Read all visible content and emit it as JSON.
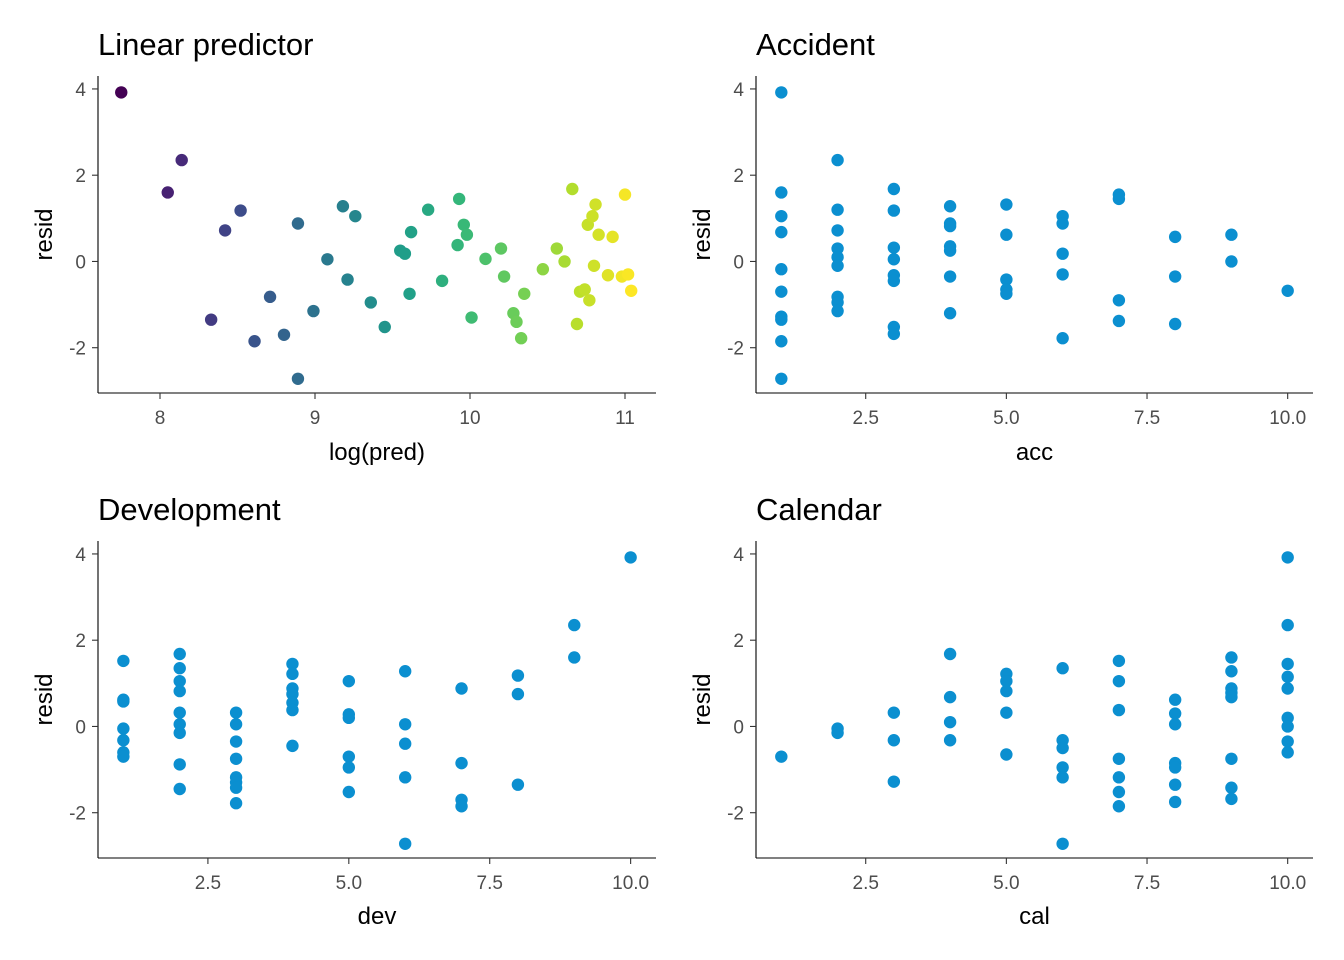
{
  "chart_data": [
    {
      "type": "scatter",
      "title": "Linear predictor",
      "xlabel": "log(pred)",
      "ylabel": "resid",
      "xlim": [
        7.6,
        11.2
      ],
      "ylim": [
        -3.05,
        4.3
      ],
      "xticks": [
        8,
        9,
        10,
        11
      ],
      "xtick_labels": [
        "8",
        "9",
        "10",
        "11"
      ],
      "yticks": [
        -2,
        0,
        2,
        4
      ],
      "ytick_labels": [
        "-2",
        "0",
        "2",
        "4"
      ],
      "color_mode": "viridis-by-x",
      "grid": false,
      "legend": "none",
      "points": [
        [
          7.75,
          3.92
        ],
        [
          8.05,
          1.6
        ],
        [
          8.14,
          2.35
        ],
        [
          8.33,
          -1.35
        ],
        [
          8.42,
          0.72
        ],
        [
          8.52,
          1.18
        ],
        [
          8.61,
          -1.85
        ],
        [
          8.71,
          -0.82
        ],
        [
          8.8,
          -1.7
        ],
        [
          8.89,
          0.88
        ],
        [
          8.89,
          -2.72
        ],
        [
          8.99,
          -1.15
        ],
        [
          9.08,
          0.05
        ],
        [
          9.18,
          1.28
        ],
        [
          9.21,
          -0.42
        ],
        [
          9.26,
          1.05
        ],
        [
          9.36,
          -0.95
        ],
        [
          9.45,
          -1.52
        ],
        [
          9.55,
          0.25
        ],
        [
          9.58,
          0.18
        ],
        [
          9.62,
          0.68
        ],
        [
          9.61,
          -0.75
        ],
        [
          9.73,
          1.2
        ],
        [
          9.82,
          -0.45
        ],
        [
          9.92,
          0.38
        ],
        [
          9.93,
          1.45
        ],
        [
          9.96,
          0.85
        ],
        [
          9.98,
          0.62
        ],
        [
          10.01,
          -1.3
        ],
        [
          10.1,
          0.06
        ],
        [
          10.2,
          0.3
        ],
        [
          10.22,
          -0.35
        ],
        [
          10.28,
          -1.2
        ],
        [
          10.3,
          -1.4
        ],
        [
          10.33,
          -1.78
        ],
        [
          10.35,
          -0.75
        ],
        [
          10.47,
          -0.18
        ],
        [
          10.56,
          0.3
        ],
        [
          10.61,
          0.0
        ],
        [
          10.66,
          1.68
        ],
        [
          10.69,
          -1.45
        ],
        [
          10.71,
          -0.7
        ],
        [
          10.74,
          -0.65
        ],
        [
          10.76,
          0.85
        ],
        [
          10.77,
          -0.9
        ],
        [
          10.79,
          1.05
        ],
        [
          10.81,
          1.32
        ],
        [
          10.8,
          -0.1
        ],
        [
          10.83,
          0.62
        ],
        [
          10.89,
          -0.32
        ],
        [
          10.92,
          0.57
        ],
        [
          10.98,
          -0.35
        ],
        [
          11.0,
          1.55
        ],
        [
          11.02,
          -0.3
        ],
        [
          11.04,
          -0.68
        ]
      ]
    },
    {
      "type": "scatter",
      "title": "Accident",
      "xlabel": "acc",
      "ylabel": "resid",
      "xlim": [
        0.55,
        10.45
      ],
      "ylim": [
        -3.05,
        4.3
      ],
      "xticks": [
        2.5,
        5.0,
        7.5,
        10.0
      ],
      "xtick_labels": [
        "2.5",
        "5.0",
        "7.5",
        "10.0"
      ],
      "yticks": [
        -2,
        0,
        2,
        4
      ],
      "ytick_labels": [
        "-2",
        "0",
        "2",
        "4"
      ],
      "color": "#0b8fd0",
      "grid": false,
      "legend": "none",
      "points": [
        [
          1,
          3.92
        ],
        [
          1,
          1.6
        ],
        [
          1,
          1.05
        ],
        [
          1,
          0.68
        ],
        [
          1,
          -0.18
        ],
        [
          1,
          -0.7
        ],
        [
          1,
          -1.28
        ],
        [
          1,
          -1.35
        ],
        [
          1,
          -1.85
        ],
        [
          1,
          -2.72
        ],
        [
          2,
          2.35
        ],
        [
          2,
          1.2
        ],
        [
          2,
          0.72
        ],
        [
          2,
          0.3
        ],
        [
          2,
          0.1
        ],
        [
          2,
          -0.1
        ],
        [
          2,
          -0.82
        ],
        [
          2,
          -0.95
        ],
        [
          2,
          -1.15
        ],
        [
          3,
          1.68
        ],
        [
          3,
          1.18
        ],
        [
          3,
          0.32
        ],
        [
          3,
          0.05
        ],
        [
          3,
          -0.32
        ],
        [
          3,
          -0.45
        ],
        [
          3,
          -1.52
        ],
        [
          3,
          -1.68
        ],
        [
          4,
          1.28
        ],
        [
          4,
          0.88
        ],
        [
          4,
          0.82
        ],
        [
          4,
          0.35
        ],
        [
          4,
          0.25
        ],
        [
          4,
          -0.35
        ],
        [
          4,
          -1.2
        ],
        [
          5,
          1.32
        ],
        [
          5,
          0.62
        ],
        [
          5,
          -0.42
        ],
        [
          5,
          -0.65
        ],
        [
          5,
          -0.75
        ],
        [
          6,
          1.05
        ],
        [
          6,
          0.88
        ],
        [
          6,
          0.18
        ],
        [
          6,
          -0.3
        ],
        [
          6,
          -1.78
        ],
        [
          7,
          1.55
        ],
        [
          7,
          1.45
        ],
        [
          7,
          -0.9
        ],
        [
          7,
          -1.38
        ],
        [
          8,
          0.57
        ],
        [
          8,
          -0.35
        ],
        [
          8,
          -1.45
        ],
        [
          9,
          0.62
        ],
        [
          9,
          0.0
        ],
        [
          10,
          -0.68
        ]
      ]
    },
    {
      "type": "scatter",
      "title": "Development",
      "xlabel": "dev",
      "ylabel": "resid",
      "xlim": [
        0.55,
        10.45
      ],
      "ylim": [
        -3.05,
        4.3
      ],
      "xticks": [
        2.5,
        5.0,
        7.5,
        10.0
      ],
      "xtick_labels": [
        "2.5",
        "5.0",
        "7.5",
        "10.0"
      ],
      "yticks": [
        -2,
        0,
        2,
        4
      ],
      "ytick_labels": [
        "-2",
        "0",
        "2",
        "4"
      ],
      "color": "#0b8fd0",
      "grid": false,
      "legend": "none",
      "points": [
        [
          1,
          1.52
        ],
        [
          1,
          0.62
        ],
        [
          1,
          0.58
        ],
        [
          1,
          -0.05
        ],
        [
          1,
          -0.32
        ],
        [
          1,
          -0.6
        ],
        [
          1,
          -0.7
        ],
        [
          2,
          1.68
        ],
        [
          2,
          1.35
        ],
        [
          2,
          1.05
        ],
        [
          2,
          0.82
        ],
        [
          2,
          0.32
        ],
        [
          2,
          0.05
        ],
        [
          2,
          -0.15
        ],
        [
          2,
          -0.88
        ],
        [
          2,
          -1.45
        ],
        [
          3,
          0.32
        ],
        [
          3,
          0.05
        ],
        [
          3,
          -0.35
        ],
        [
          3,
          -0.75
        ],
        [
          3,
          -1.18
        ],
        [
          3,
          -1.3
        ],
        [
          3,
          -1.42
        ],
        [
          3,
          -1.78
        ],
        [
          4,
          1.45
        ],
        [
          4,
          1.22
        ],
        [
          4,
          0.88
        ],
        [
          4,
          0.75
        ],
        [
          4,
          0.55
        ],
        [
          4,
          0.38
        ],
        [
          4,
          -0.45
        ],
        [
          5,
          1.05
        ],
        [
          5,
          0.28
        ],
        [
          5,
          0.2
        ],
        [
          5,
          -0.7
        ],
        [
          5,
          -0.95
        ],
        [
          5,
          -1.52
        ],
        [
          6,
          1.28
        ],
        [
          6,
          0.05
        ],
        [
          6,
          -0.4
        ],
        [
          6,
          -1.18
        ],
        [
          6,
          -2.72
        ],
        [
          7,
          0.88
        ],
        [
          7,
          -0.85
        ],
        [
          7,
          -1.7
        ],
        [
          7,
          -1.85
        ],
        [
          8,
          1.18
        ],
        [
          8,
          0.75
        ],
        [
          8,
          -1.35
        ],
        [
          9,
          2.35
        ],
        [
          9,
          1.6
        ],
        [
          10,
          3.92
        ]
      ]
    },
    {
      "type": "scatter",
      "title": "Calendar",
      "xlabel": "cal",
      "ylabel": "resid",
      "xlim": [
        0.55,
        10.45
      ],
      "ylim": [
        -3.05,
        4.3
      ],
      "xticks": [
        2.5,
        5.0,
        7.5,
        10.0
      ],
      "xtick_labels": [
        "2.5",
        "5.0",
        "7.5",
        "10.0"
      ],
      "yticks": [
        -2,
        0,
        2,
        4
      ],
      "ytick_labels": [
        "-2",
        "0",
        "2",
        "4"
      ],
      "color": "#0b8fd0",
      "grid": false,
      "legend": "none",
      "points": [
        [
          1,
          -0.7
        ],
        [
          2,
          -0.05
        ],
        [
          2,
          -0.15
        ],
        [
          3,
          0.32
        ],
        [
          3,
          -0.32
        ],
        [
          3,
          -1.28
        ],
        [
          4,
          1.68
        ],
        [
          4,
          0.68
        ],
        [
          4,
          0.1
        ],
        [
          4,
          -0.32
        ],
        [
          5,
          1.22
        ],
        [
          5,
          1.05
        ],
        [
          5,
          0.82
        ],
        [
          5,
          0.32
        ],
        [
          5,
          -0.65
        ],
        [
          6,
          1.35
        ],
        [
          6,
          -0.32
        ],
        [
          6,
          -0.5
        ],
        [
          6,
          -0.95
        ],
        [
          6,
          -1.18
        ],
        [
          6,
          -2.72
        ],
        [
          7,
          1.52
        ],
        [
          7,
          1.05
        ],
        [
          7,
          0.38
        ],
        [
          7,
          -0.75
        ],
        [
          7,
          -1.18
        ],
        [
          7,
          -1.52
        ],
        [
          7,
          -1.85
        ],
        [
          8,
          0.62
        ],
        [
          8,
          0.3
        ],
        [
          8,
          0.05
        ],
        [
          8,
          -0.85
        ],
        [
          8,
          -0.95
        ],
        [
          8,
          -1.35
        ],
        [
          8,
          -1.75
        ],
        [
          9,
          1.6
        ],
        [
          9,
          1.28
        ],
        [
          9,
          0.88
        ],
        [
          9,
          0.78
        ],
        [
          9,
          0.68
        ],
        [
          9,
          -0.75
        ],
        [
          9,
          -1.42
        ],
        [
          9,
          -1.68
        ],
        [
          10,
          3.92
        ],
        [
          10,
          2.35
        ],
        [
          10,
          1.45
        ],
        [
          10,
          1.15
        ],
        [
          10,
          0.88
        ],
        [
          10,
          0.2
        ],
        [
          10,
          0.0
        ],
        [
          10,
          -0.35
        ],
        [
          10,
          -0.6
        ]
      ]
    }
  ]
}
